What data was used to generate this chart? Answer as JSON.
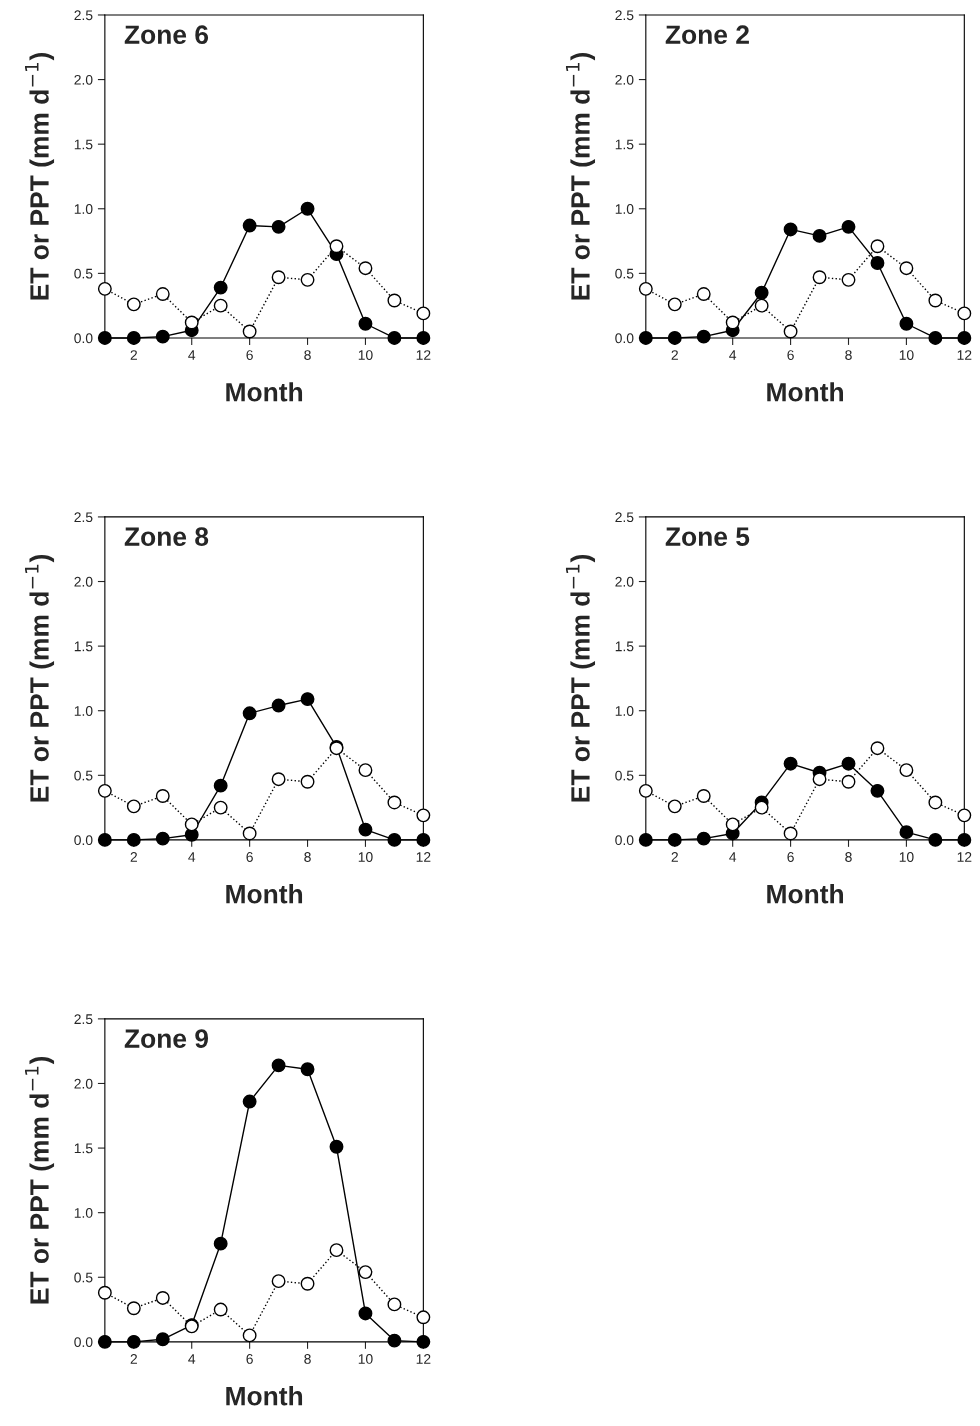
{
  "chart_data": [
    {
      "type": "line",
      "title": "Zone 6",
      "xlabel": "Month",
      "ylabel": "ET or PPT (mm d$^{−1}$)",
      "x": [
        1,
        2,
        3,
        4,
        5,
        6,
        7,
        8,
        9,
        10,
        11,
        12
      ],
      "xlim": [
        1,
        12
      ],
      "xticks": [
        2,
        4,
        6,
        8,
        10,
        12
      ],
      "ylim": [
        0,
        2.5
      ],
      "yticks": [
        {
          "value": 0,
          "label": "0.0"
        },
        {
          "value": 0.5,
          "label": "0.5"
        },
        {
          "value": 1,
          "label": "1.0"
        },
        {
          "value": 1.5,
          "label": "1.5"
        },
        {
          "value": 2,
          "label": "2.0"
        },
        {
          "value": 2.5,
          "label": "2.5"
        }
      ],
      "marker": "circle",
      "series": [
        {
          "color": "#000000",
          "line_style": "solid",
          "values": [
            0,
            0,
            0.01,
            0.06,
            0.39,
            0.87,
            0.86,
            1.0,
            0.65,
            0.11,
            0,
            0
          ]
        },
        {
          "color": "#ffffff",
          "line_style": "dotted",
          "values": [
            0.38,
            0.26,
            0.34,
            0.12,
            0.25,
            0.05,
            0.47,
            0.45,
            0.71,
            0.54,
            0.29,
            0.19
          ]
        }
      ]
    },
    {
      "type": "line",
      "title": "Zone 2",
      "xlabel": "Month",
      "ylabel": "ET or PPT (mm d$^{−1}$)",
      "x": [
        1,
        2,
        3,
        4,
        5,
        6,
        7,
        8,
        9,
        10,
        11,
        12
      ],
      "xlim": [
        1,
        12
      ],
      "xticks": [
        2,
        4,
        6,
        8,
        10,
        12
      ],
      "ylim": [
        0,
        2.5
      ],
      "yticks": [
        {
          "value": 0,
          "label": "0.0"
        },
        {
          "value": 0.5,
          "label": "0.5"
        },
        {
          "value": 1,
          "label": "1.0"
        },
        {
          "value": 1.5,
          "label": "1.5"
        },
        {
          "value": 2,
          "label": "2.0"
        },
        {
          "value": 2.5,
          "label": "2.5"
        }
      ],
      "marker": "circle",
      "series": [
        {
          "color": "#000000",
          "line_style": "solid",
          "values": [
            0,
            0,
            0.01,
            0.06,
            0.35,
            0.84,
            0.79,
            0.86,
            0.58,
            0.11,
            0,
            0
          ]
        },
        {
          "color": "#ffffff",
          "line_style": "dotted",
          "values": [
            0.38,
            0.26,
            0.34,
            0.12,
            0.25,
            0.05,
            0.47,
            0.45,
            0.71,
            0.54,
            0.29,
            0.19
          ]
        }
      ]
    },
    {
      "type": "line",
      "title": "Zone 8",
      "xlabel": "Month",
      "ylabel": "ET or PPT (mm d$^{−1}$)",
      "x": [
        1,
        2,
        3,
        4,
        5,
        6,
        7,
        8,
        9,
        10,
        11,
        12
      ],
      "xlim": [
        1,
        12
      ],
      "xticks": [
        2,
        4,
        6,
        8,
        10,
        12
      ],
      "ylim": [
        0,
        2.5
      ],
      "yticks": [
        {
          "value": 0,
          "label": "0.0"
        },
        {
          "value": 0.5,
          "label": "0.5"
        },
        {
          "value": 1,
          "label": "1.0"
        },
        {
          "value": 1.5,
          "label": "1.5"
        },
        {
          "value": 2,
          "label": "2.0"
        },
        {
          "value": 2.5,
          "label": "2.5"
        }
      ],
      "marker": "circle",
      "series": [
        {
          "color": "#000000",
          "line_style": "solid",
          "values": [
            0,
            0,
            0.01,
            0.04,
            0.42,
            0.98,
            1.04,
            1.09,
            0.72,
            0.08,
            0,
            0
          ]
        },
        {
          "color": "#ffffff",
          "line_style": "dotted",
          "values": [
            0.38,
            0.26,
            0.34,
            0.12,
            0.25,
            0.05,
            0.47,
            0.45,
            0.71,
            0.54,
            0.29,
            0.19
          ]
        }
      ]
    },
    {
      "type": "line",
      "title": "Zone 5",
      "xlabel": "Month",
      "ylabel": "ET or PPT (mm d$^{−1}$)",
      "x": [
        1,
        2,
        3,
        4,
        5,
        6,
        7,
        8,
        9,
        10,
        11,
        12
      ],
      "xlim": [
        1,
        12
      ],
      "xticks": [
        2,
        4,
        6,
        8,
        10,
        12
      ],
      "ylim": [
        0,
        2.5
      ],
      "yticks": [
        {
          "value": 0,
          "label": "0.0"
        },
        {
          "value": 0.5,
          "label": "0.5"
        },
        {
          "value": 1,
          "label": "1.0"
        },
        {
          "value": 1.5,
          "label": "1.5"
        },
        {
          "value": 2,
          "label": "2.0"
        },
        {
          "value": 2.5,
          "label": "2.5"
        }
      ],
      "marker": "circle",
      "series": [
        {
          "color": "#000000",
          "line_style": "solid",
          "values": [
            0,
            0,
            0.01,
            0.05,
            0.29,
            0.59,
            0.52,
            0.59,
            0.38,
            0.06,
            0,
            0
          ]
        },
        {
          "color": "#ffffff",
          "line_style": "dotted",
          "values": [
            0.38,
            0.26,
            0.34,
            0.12,
            0.25,
            0.05,
            0.47,
            0.45,
            0.71,
            0.54,
            0.29,
            0.19
          ]
        }
      ]
    },
    {
      "type": "line",
      "title": "Zone 9",
      "xlabel": "Month",
      "ylabel": "ET or PPT (mm d$^{−1}$)",
      "x": [
        1,
        2,
        3,
        4,
        5,
        6,
        7,
        8,
        9,
        10,
        11,
        12
      ],
      "xlim": [
        1,
        12
      ],
      "xticks": [
        2,
        4,
        6,
        8,
        10,
        12
      ],
      "ylim": [
        0,
        2.5
      ],
      "yticks": [
        {
          "value": 0,
          "label": "0.0"
        },
        {
          "value": 0.5,
          "label": "0.5"
        },
        {
          "value": 1,
          "label": "1.0"
        },
        {
          "value": 1.5,
          "label": "1.5"
        },
        {
          "value": 2,
          "label": "2.0"
        },
        {
          "value": 2.5,
          "label": "2.5"
        }
      ],
      "marker": "circle",
      "series": [
        {
          "color": "#000000",
          "line_style": "solid",
          "values": [
            0,
            0,
            0.02,
            0.13,
            0.76,
            1.86,
            2.14,
            2.11,
            1.51,
            0.22,
            0.01,
            0
          ]
        },
        {
          "color": "#ffffff",
          "line_style": "dotted",
          "values": [
            0.38,
            0.26,
            0.34,
            0.12,
            0.25,
            0.05,
            0.47,
            0.45,
            0.71,
            0.54,
            0.29,
            0.19
          ]
        }
      ]
    }
  ]
}
